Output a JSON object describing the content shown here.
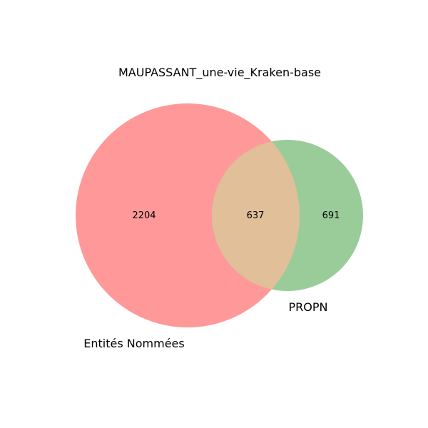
{
  "chart_data": {
    "type": "venn",
    "title": "MAUPASSANT_une-vie_Kraken-base",
    "sets": [
      {
        "name": "Entités Nommées",
        "color": "#ff9999"
      },
      {
        "name": "PROPN",
        "color": "#99cc99"
      }
    ],
    "overlap_color": "#e0bf99",
    "regions": {
      "left_only": "2204",
      "both": "637",
      "right_only": "691"
    }
  }
}
